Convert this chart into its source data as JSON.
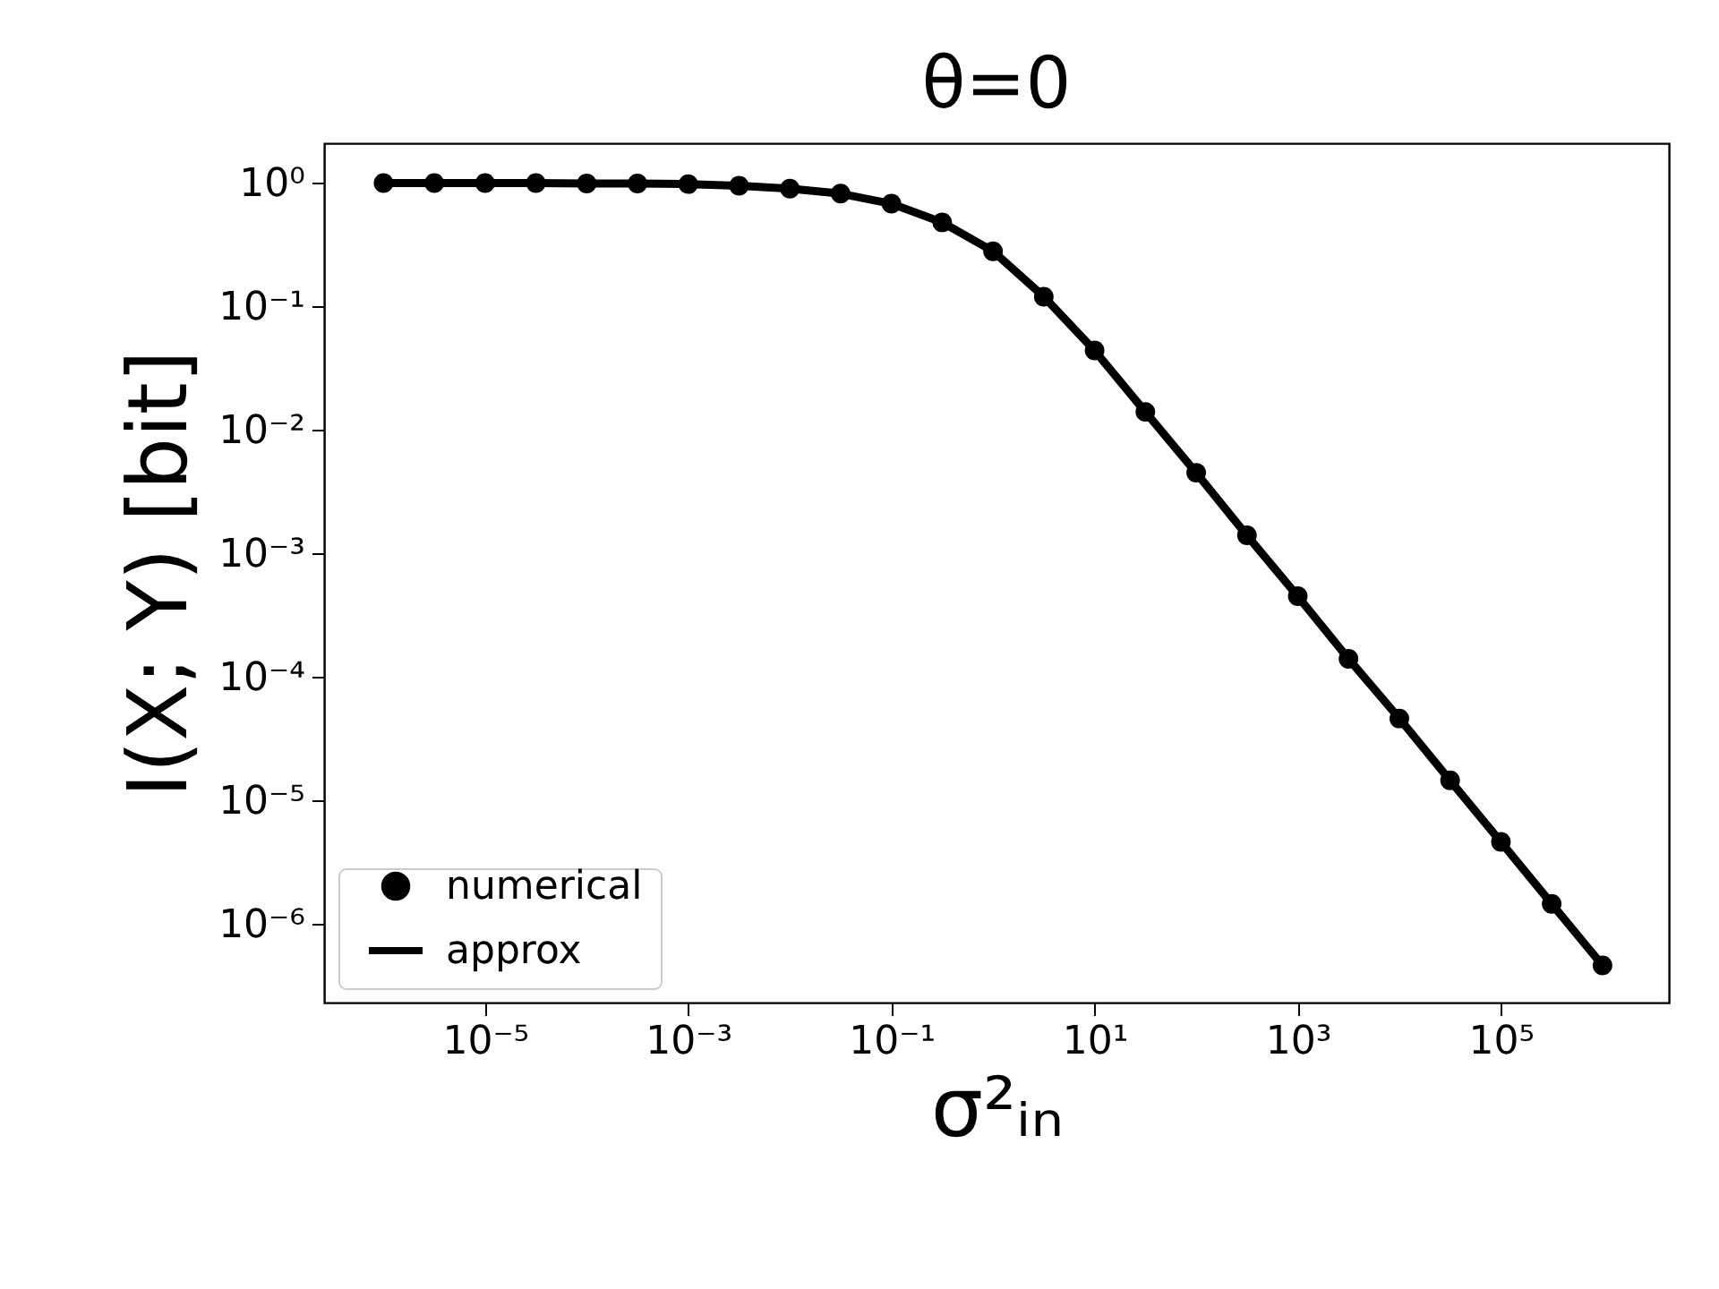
{
  "chart_data": {
    "type": "line",
    "title": "θ=0",
    "xlabel": "σ²ᵢₙ",
    "ylabel": "I(X; Y) [bit]",
    "log": "xy",
    "x": [
      1e-06,
      3.16e-06,
      1e-05,
      3.16e-05,
      0.0001,
      0.000316,
      0.001,
      0.00316,
      0.01,
      0.0316,
      0.1,
      0.316,
      1,
      3.16,
      10,
      31.6,
      100,
      316,
      1000,
      3160,
      10000,
      31600,
      100000,
      316000,
      1000000
    ],
    "series": [
      {
        "name": "numerical",
        "type": "scatter",
        "marker": "circle",
        "color": "#000000",
        "values": [
          1,
          1,
          1,
          1,
          0.99,
          0.99,
          0.98,
          0.95,
          0.9,
          0.82,
          0.68,
          0.48,
          0.28,
          0.12,
          0.044,
          0.014,
          0.0045,
          0.0014,
          0.00045,
          0.00014,
          4.6e-05,
          1.45e-05,
          4.6e-06,
          1.45e-06,
          4.6e-07
        ]
      },
      {
        "name": "approx",
        "color": "#000000",
        "values": [
          1,
          1,
          1,
          1,
          0.99,
          0.99,
          0.98,
          0.95,
          0.9,
          0.82,
          0.68,
          0.48,
          0.28,
          0.12,
          0.044,
          0.014,
          0.0045,
          0.0014,
          0.00045,
          0.00014,
          4.6e-05,
          1.45e-05,
          4.6e-06,
          1.45e-06,
          4.6e-07
        ]
      }
    ],
    "xlim": [
      2.6e-07,
      4500000.0
    ],
    "ylim": [
      2.3e-07,
      2.1
    ],
    "xticks": [
      {
        "value": 1e-05,
        "label": "10⁻⁵"
      },
      {
        "value": 0.001,
        "label": "10⁻³"
      },
      {
        "value": 0.1,
        "label": "10⁻¹"
      },
      {
        "value": 10,
        "label": "10¹"
      },
      {
        "value": 1000,
        "label": "10³"
      },
      {
        "value": 100000,
        "label": "10⁵"
      }
    ],
    "yticks": [
      {
        "value": 1,
        "label": "10⁰"
      },
      {
        "value": 0.1,
        "label": "10⁻¹"
      },
      {
        "value": 0.01,
        "label": "10⁻²"
      },
      {
        "value": 0.001,
        "label": "10⁻³"
      },
      {
        "value": 0.0001,
        "label": "10⁻⁴"
      },
      {
        "value": 1e-05,
        "label": "10⁻⁵"
      },
      {
        "value": 1e-06,
        "label": "10⁻⁶"
      }
    ],
    "grid": false,
    "legend": "bottom left",
    "line_style": "solid"
  }
}
